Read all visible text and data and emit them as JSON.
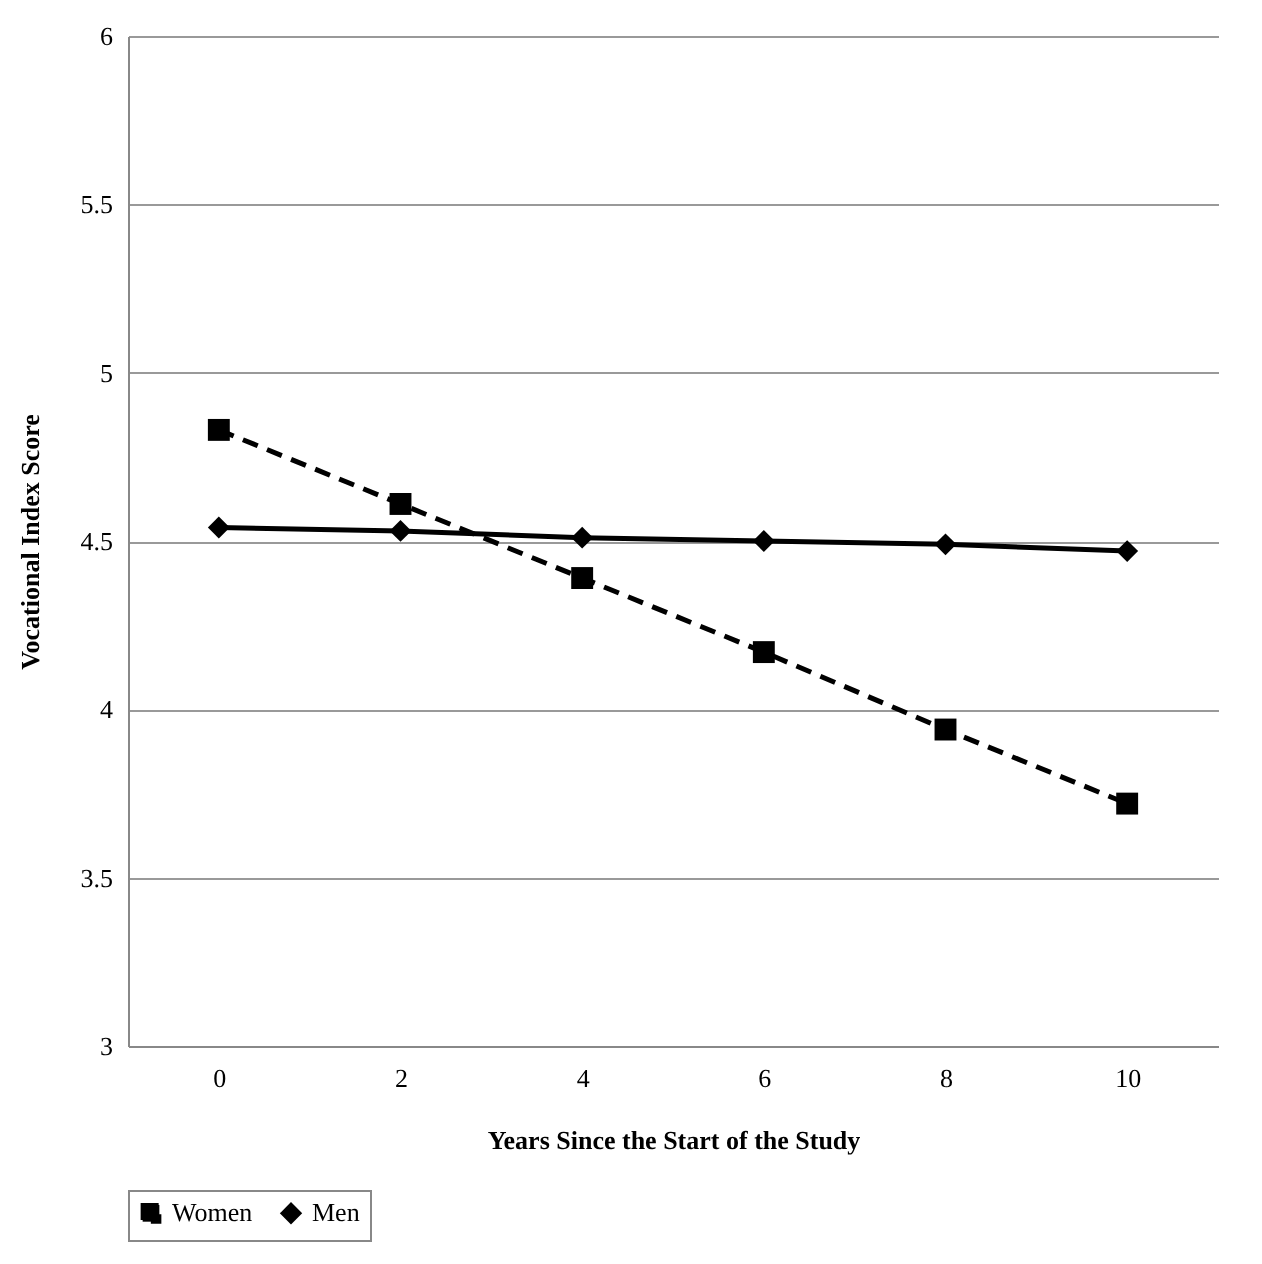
{
  "chart_data": {
    "type": "line",
    "xlabel": "Years Since the Start of the Study",
    "ylabel": "Vocational Index Score",
    "x": [
      0,
      2,
      4,
      6,
      8,
      10
    ],
    "series": [
      {
        "name": "Women",
        "color": "#000000",
        "marker": "square",
        "line_style": "dashed",
        "values": [
          4.83,
          4.61,
          4.39,
          4.17,
          3.94,
          3.72
        ]
      },
      {
        "name": "Men",
        "color": "#000000",
        "marker": "diamond",
        "line_style": "solid",
        "values": [
          4.54,
          4.53,
          4.51,
          4.5,
          4.49,
          4.47
        ]
      }
    ],
    "xlim": [
      -1,
      11
    ],
    "xticks": [
      0,
      2,
      4,
      6,
      8,
      10
    ],
    "ylim": [
      3,
      6
    ],
    "yticks": [
      3,
      3.5,
      4,
      4.5,
      5,
      5.5,
      6
    ],
    "grid": "y",
    "legend": "bottom"
  }
}
